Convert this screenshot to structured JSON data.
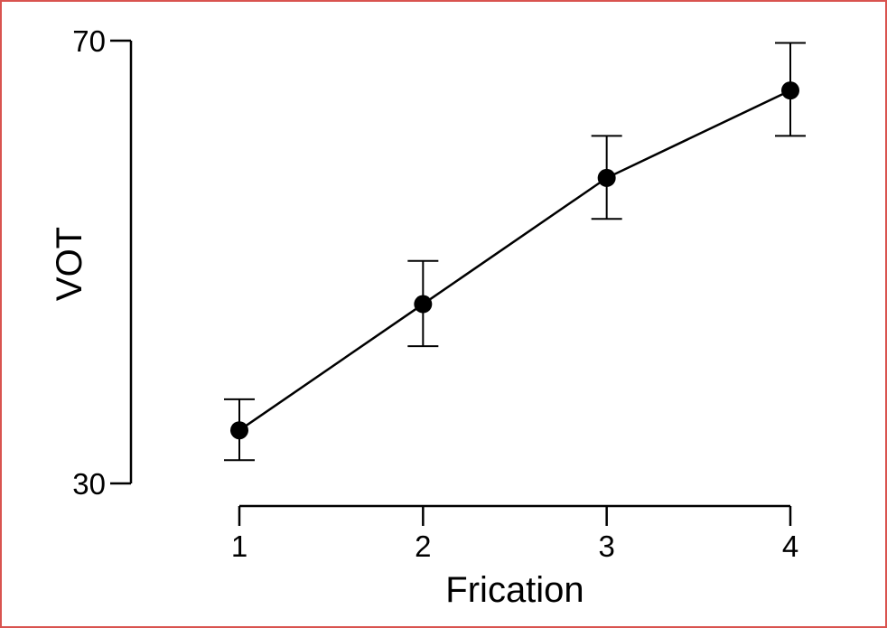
{
  "chart_data": {
    "type": "line",
    "title": "",
    "xlabel": "Frication",
    "ylabel": "VOT",
    "x": [
      1,
      2,
      3,
      4
    ],
    "x_tick_labels": [
      "1",
      "2",
      "3",
      "4"
    ],
    "y_tick_labels": [
      "30",
      "70"
    ],
    "ylim": [
      30,
      70
    ],
    "grid": false,
    "legend": "none",
    "series": [
      {
        "values": [
          34.8,
          46.2,
          57.6,
          65.5
        ],
        "error_low": [
          32.1,
          42.4,
          53.9,
          61.4
        ],
        "error_high": [
          37.6,
          50.1,
          61.4,
          69.8
        ]
      }
    ],
    "colors": {
      "series": "#000000",
      "frame_border": "#d9534f"
    }
  }
}
